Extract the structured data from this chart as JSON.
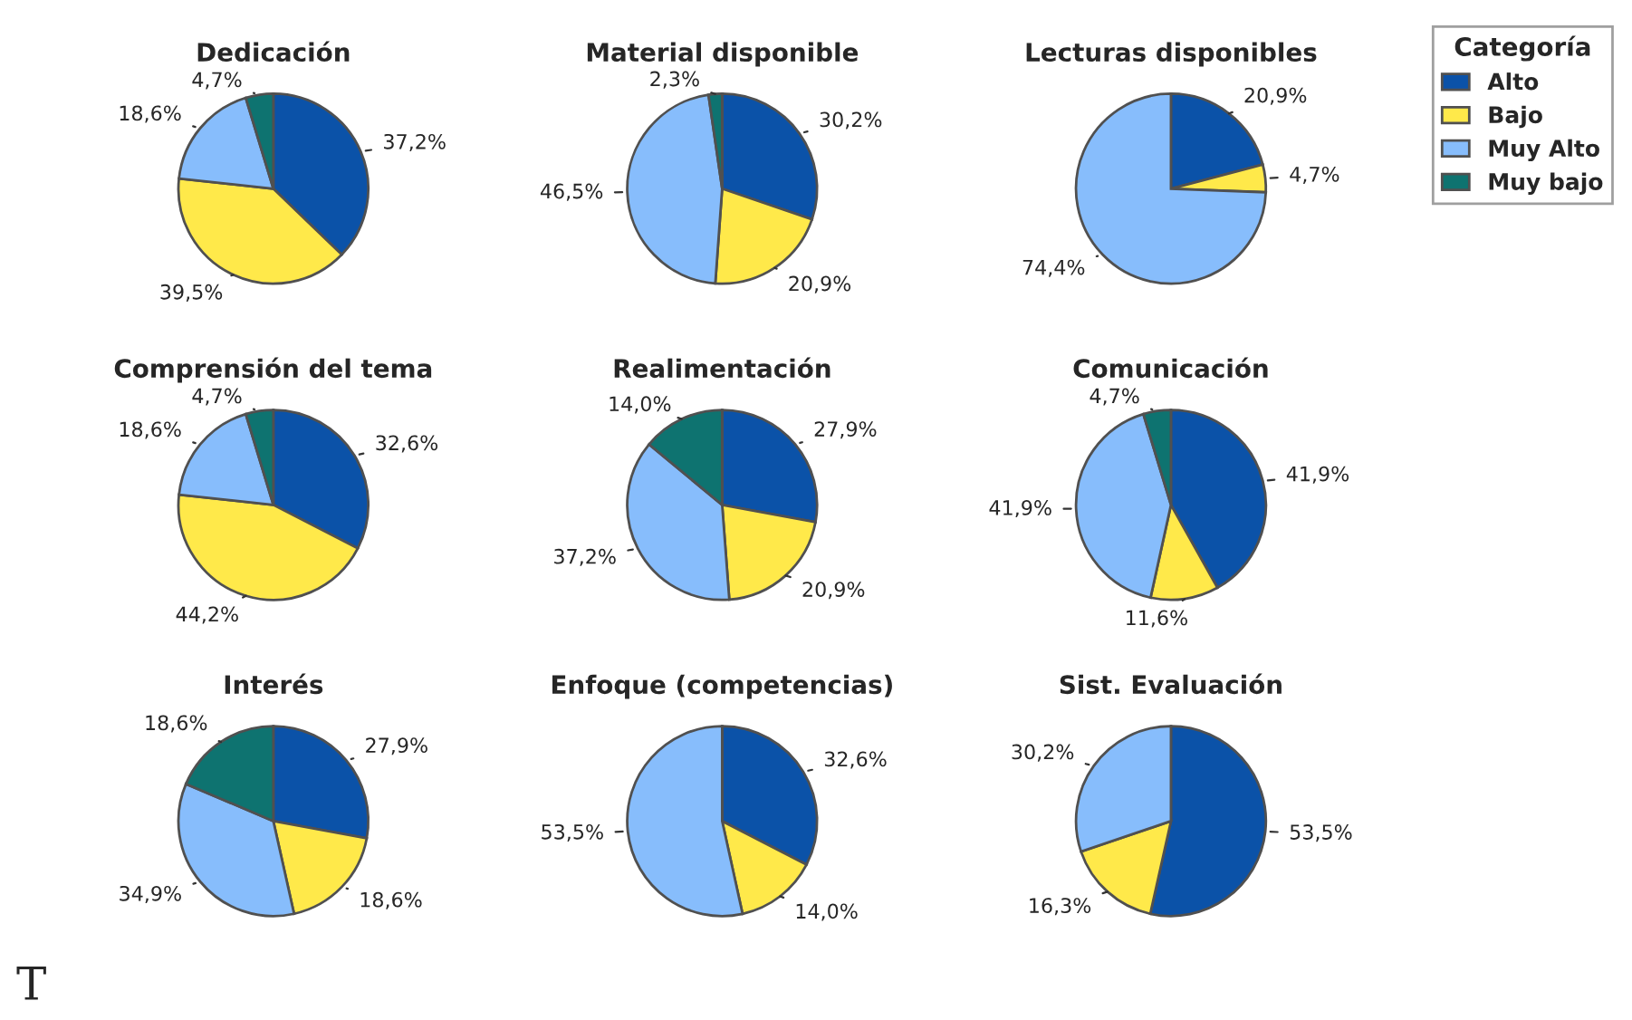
{
  "chart_data": [
    {
      "type": "pie",
      "title": "Dedicación",
      "categories": [
        "Alto",
        "Bajo",
        "Muy Alto",
        "Muy bajo"
      ],
      "values": [
        37.2,
        39.5,
        18.6,
        4.7
      ],
      "colors": [
        "#0b52a8",
        "#ffe94a",
        "#87bdfc",
        "#0e7370"
      ],
      "value_labels": [
        "37,2%",
        "39,5%",
        "18,6%",
        "4,7%"
      ],
      "legend": "right",
      "legend_title": "Categoría"
    },
    {
      "type": "pie",
      "title": "Material disponible",
      "categories": [
        null,
        null,
        null,
        null
      ],
      "values": [
        30.2,
        20.9,
        46.5,
        2.3
      ],
      "colors": [
        "#0b52a8",
        "#ffe94a",
        "#87bdfc",
        "#0e7370"
      ],
      "value_labels": [
        "30,2%",
        "20,9%",
        "46,5%",
        "2,3%"
      ]
    },
    {
      "type": "pie",
      "title": "Lecturas disponibles",
      "categories": [
        null,
        null,
        null
      ],
      "values": [
        20.9,
        4.7,
        74.4
      ],
      "colors": [
        "#0b52a8",
        "#ffe94a",
        "#87bdfc"
      ],
      "value_labels": [
        "20,9%",
        "4,7%",
        "74,4%"
      ]
    },
    {
      "type": "pie",
      "title": "Comprensión del tema",
      "categories": [
        null,
        null,
        null,
        null
      ],
      "values": [
        32.6,
        44.2,
        18.6,
        4.7
      ],
      "colors": [
        "#0b52a8",
        "#ffe94a",
        "#87bdfc",
        "#0e7370"
      ],
      "value_labels": [
        "32,6%",
        "44,2%",
        "18,6%",
        "4,7%"
      ]
    },
    {
      "type": "pie",
      "title": "Realimentación",
      "categories": [
        null,
        null,
        null,
        null
      ],
      "values": [
        27.9,
        20.9,
        37.2,
        14.0
      ],
      "colors": [
        "#0b52a8",
        "#ffe94a",
        "#87bdfc",
        "#0e7370"
      ],
      "value_labels": [
        "27,9%",
        "20,9%",
        "37,2%",
        "14,0%"
      ]
    },
    {
      "type": "pie",
      "title": "Comunicación",
      "categories": [
        null,
        null,
        null,
        null
      ],
      "values": [
        41.9,
        11.6,
        41.9,
        4.7
      ],
      "colors": [
        "#0b52a8",
        "#ffe94a",
        "#87bdfc",
        "#0e7370"
      ],
      "value_labels": [
        "41,9%",
        "11,6%",
        "41,9%",
        "4,7%"
      ]
    },
    {
      "type": "pie",
      "title": "Interés",
      "categories": [
        null,
        null,
        null,
        null
      ],
      "values": [
        27.9,
        18.6,
        34.9,
        18.6
      ],
      "colors": [
        "#0b52a8",
        "#ffe94a",
        "#87bdfc",
        "#0e7370"
      ],
      "value_labels": [
        "27,9%",
        "18,6%",
        "34,9%",
        "18,6%"
      ],
      "annotations": [
        "T"
      ]
    },
    {
      "type": "pie",
      "title": "Enfoque (competencias)",
      "categories": [
        null,
        null,
        null
      ],
      "values": [
        32.6,
        14.0,
        53.5
      ],
      "colors": [
        "#0b52a8",
        "#ffe94a",
        "#87bdfc"
      ],
      "value_labels": [
        "32,6%",
        "14,0%",
        "53,5%"
      ]
    },
    {
      "type": "pie",
      "title": "Sist. Evaluación",
      "categories": [
        null,
        null,
        null
      ],
      "values": [
        53.5,
        16.3,
        30.2
      ],
      "colors": [
        "#0b52a8",
        "#ffe94a",
        "#87bdfc"
      ],
      "value_labels": [
        "53,5%",
        "16,3%",
        "30,2%"
      ]
    }
  ]
}
